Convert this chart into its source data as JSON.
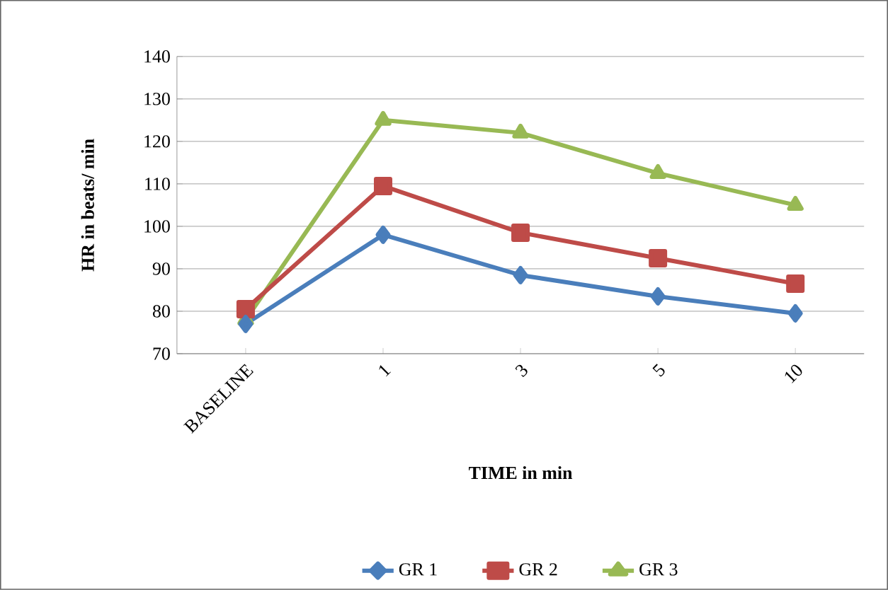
{
  "chart_data": {
    "type": "line",
    "xlabel": "TIME in min",
    "ylabel": "HR in beats/ min",
    "categories": [
      "BASELINE",
      "1",
      "3",
      "5",
      "10"
    ],
    "series": [
      {
        "name": "GR 1",
        "color": "#4a7ebb",
        "marker": "diamond",
        "values": [
          77,
          98,
          88.5,
          83.5,
          79.5
        ]
      },
      {
        "name": "GR 2",
        "color": "#be4b48",
        "marker": "square",
        "values": [
          80.5,
          109.5,
          98.5,
          92.5,
          86.5
        ]
      },
      {
        "name": "GR 3",
        "color": "#98b954",
        "marker": "triangle",
        "values": [
          78,
          125,
          122,
          112.5,
          105
        ]
      }
    ],
    "ylim": [
      70,
      140
    ],
    "yticks": [
      70,
      80,
      90,
      100,
      110,
      120,
      130,
      140
    ],
    "grid": "y",
    "legend": "bottom"
  }
}
